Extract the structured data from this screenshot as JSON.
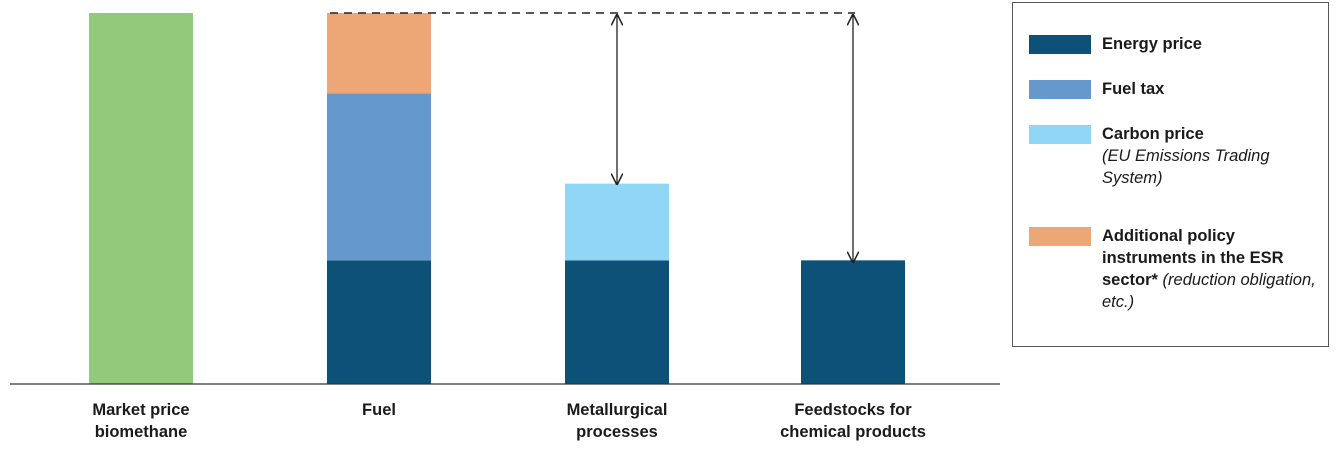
{
  "chart_data": {
    "type": "bar",
    "stacked": true,
    "categories": [
      "Market price\nbiomethane",
      "Fuel",
      "Metallurgical\nprocesses",
      "Feedstocks for\nchemical products"
    ],
    "series": [
      {
        "name": "Energy price",
        "color": "#0e5178",
        "values": [
          0,
          1.0,
          1.0,
          1.0
        ]
      },
      {
        "name": "Fuel tax",
        "color": "#6598cc",
        "values": [
          0,
          1.35,
          0,
          0
        ]
      },
      {
        "name": "Carbon price",
        "color": "#8fd7f5",
        "values": [
          0,
          0,
          0.62,
          0
        ]
      },
      {
        "name": "Additional policy instruments in the ESR sector",
        "color": "#eda776",
        "values": [
          0,
          0.65,
          0,
          0
        ]
      },
      {
        "name": "",
        "color": "#93c97a",
        "values": [
          3.0,
          0,
          0,
          0
        ]
      }
    ],
    "ylim": [
      0,
      3.0
    ],
    "grid": false,
    "legend_position": "right"
  },
  "legend": [
    {
      "bold": "Energy price",
      "italic": "",
      "color": "#0e5178"
    },
    {
      "bold": "Fuel tax",
      "italic": "",
      "color": "#6598cc"
    },
    {
      "bold": "Carbon price",
      "italic": "(EU Emissions Trading System)",
      "color": "#8fd7f5"
    },
    {
      "bold": "Additional policy instruments in the ESR sector*",
      "italic": " (reduction obligation, etc.)",
      "color": "#eda776"
    }
  ]
}
